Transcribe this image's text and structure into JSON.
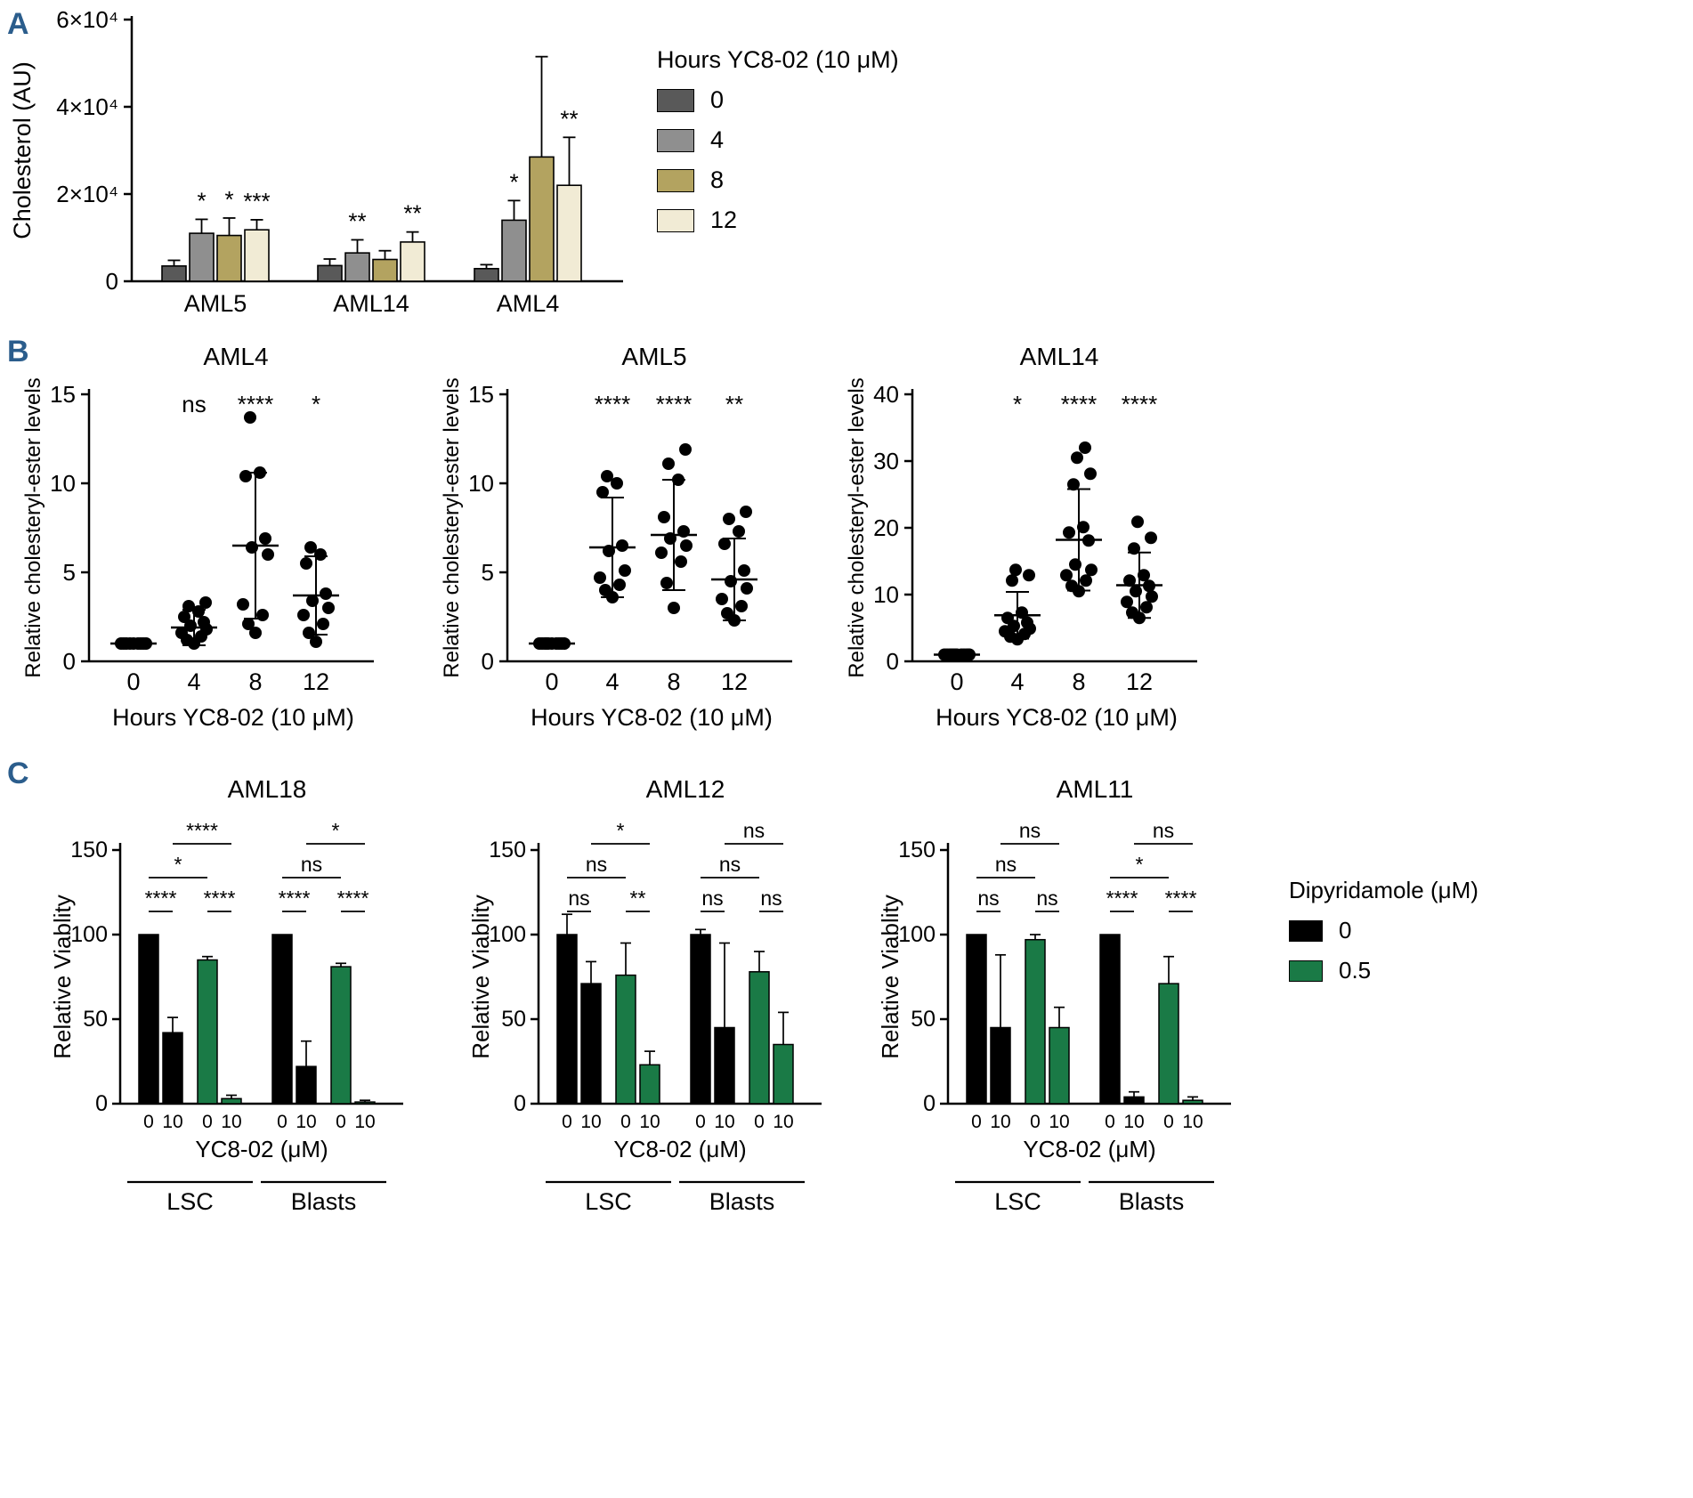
{
  "figure": {
    "panel_labels": {
      "a": "A",
      "b": "B",
      "c": "C"
    },
    "panel_label_color": "#2b5d8c",
    "background": "#ffffff"
  },
  "colors": {
    "black_bar": "#000000",
    "green_bar": "#1a7a46"
  },
  "legend_c": {
    "title": "Dipyridamole (μM)",
    "entries": [
      {
        "label": "0",
        "color": "#000000"
      },
      {
        "label": "0.5",
        "color": "#1a7a46"
      }
    ]
  },
  "chart_data": [
    {
      "id": "panelA",
      "type": "bar",
      "title": "",
      "ylabel": "Cholesterol (AU)",
      "ylim": [
        0,
        60000
      ],
      "yticks": [
        {
          "v": 0,
          "label": "0"
        },
        {
          "v": 20000,
          "label": "2×10⁴"
        },
        {
          "v": 40000,
          "label": "4×10⁴"
        },
        {
          "v": 60000,
          "label": "6×10⁴"
        }
      ],
      "legend": {
        "title": "Hours YC8-02 (10 μM)",
        "entries": [
          {
            "label": "0",
            "color": "#595959"
          },
          {
            "label": "4",
            "color": "#8f8f8f"
          },
          {
            "label": "8",
            "color": "#b3a360"
          },
          {
            "label": "12",
            "color": "#f1ebd5"
          }
        ]
      },
      "groups": [
        {
          "label": "AML5",
          "bars": [
            {
              "hours": "0",
              "value": 3500,
              "err": 1300,
              "sig": ""
            },
            {
              "hours": "4",
              "value": 11000,
              "err": 3200,
              "sig": "*"
            },
            {
              "hours": "8",
              "value": 10500,
              "err": 4000,
              "sig": "*"
            },
            {
              "hours": "12",
              "value": 11800,
              "err": 2300,
              "sig": "***"
            }
          ]
        },
        {
          "label": "AML14",
          "bars": [
            {
              "hours": "0",
              "value": 3600,
              "err": 1500,
              "sig": ""
            },
            {
              "hours": "4",
              "value": 6500,
              "err": 3000,
              "sig": "**"
            },
            {
              "hours": "8",
              "value": 5000,
              "err": 2000,
              "sig": ""
            },
            {
              "hours": "12",
              "value": 9000,
              "err": 2300,
              "sig": "**"
            }
          ]
        },
        {
          "label": "AML4",
          "bars": [
            {
              "hours": "0",
              "value": 2900,
              "err": 900,
              "sig": ""
            },
            {
              "hours": "4",
              "value": 14000,
              "err": 4500,
              "sig": "*"
            },
            {
              "hours": "8",
              "value": 28500,
              "err": 23000,
              "sig": ""
            },
            {
              "hours": "12",
              "value": 22000,
              "err": 11000,
              "sig": "**"
            }
          ]
        }
      ]
    },
    {
      "id": "panelB1",
      "type": "scatter",
      "title": "AML4",
      "ylabel": "Relative cholesteryl-ester levels",
      "xlabel": "Hours YC8-02 (10 μM)",
      "ylim": [
        0,
        15
      ],
      "yticks": [
        0,
        5,
        10,
        15
      ],
      "columns": [
        {
          "x": "0",
          "sig": "",
          "mean": 1.0,
          "sd": 0,
          "points": [
            1,
            1,
            1,
            1,
            1,
            1,
            1,
            1,
            1
          ]
        },
        {
          "x": "4",
          "sig": "ns",
          "mean": 1.9,
          "sd": 1.0,
          "points": [
            1.0,
            1.2,
            1.4,
            1.6,
            1.8,
            2.0,
            2.2,
            2.5,
            2.8,
            3.1,
            3.3
          ]
        },
        {
          "x": "8",
          "sig": "****",
          "mean": 6.5,
          "sd": 4.1,
          "points": [
            1.6,
            2.1,
            2.6,
            3.2,
            6.0,
            6.4,
            6.9,
            10.4,
            10.6,
            13.7
          ]
        },
        {
          "x": "12",
          "sig": "*",
          "mean": 3.7,
          "sd": 2.2,
          "points": [
            1.1,
            1.6,
            2.1,
            2.6,
            3.0,
            3.4,
            3.8,
            5.5,
            6.0,
            6.4
          ]
        }
      ]
    },
    {
      "id": "panelB2",
      "type": "scatter",
      "title": "AML5",
      "ylabel": "Relative cholesteryl-ester levels",
      "xlabel": "Hours YC8-02 (10 μM)",
      "ylim": [
        0,
        15
      ],
      "yticks": [
        0,
        5,
        10,
        15
      ],
      "columns": [
        {
          "x": "0",
          "sig": "",
          "mean": 1.0,
          "sd": 0,
          "points": [
            1,
            1,
            1,
            1,
            1,
            1,
            1,
            1,
            1,
            1
          ]
        },
        {
          "x": "4",
          "sig": "****",
          "mean": 6.4,
          "sd": 2.8,
          "points": [
            3.6,
            4.0,
            4.3,
            4.7,
            5.1,
            6.2,
            6.5,
            9.5,
            10.0,
            10.4
          ]
        },
        {
          "x": "8",
          "sig": "****",
          "mean": 7.1,
          "sd": 3.1,
          "points": [
            3.0,
            4.4,
            5.6,
            6.1,
            6.5,
            6.9,
            7.3,
            8.1,
            10.2,
            11.1,
            11.9
          ]
        },
        {
          "x": "12",
          "sig": "**",
          "mean": 4.6,
          "sd": 2.3,
          "points": [
            2.3,
            2.7,
            3.1,
            3.5,
            4.1,
            4.5,
            5.1,
            6.6,
            7.3,
            8.0,
            8.4
          ]
        }
      ]
    },
    {
      "id": "panelB3",
      "type": "scatter",
      "title": "AML14",
      "ylabel": "Relative cholesteryl-ester levels",
      "xlabel": "Hours YC8-02 (10 μM)",
      "ylim": [
        0,
        40
      ],
      "yticks": [
        0,
        10,
        20,
        30,
        40
      ],
      "columns": [
        {
          "x": "0",
          "sig": "",
          "mean": 1.0,
          "sd": 0,
          "points": [
            1,
            1,
            1,
            1,
            1,
            1,
            1,
            1,
            1,
            1,
            1,
            1
          ]
        },
        {
          "x": "4",
          "sig": "*",
          "mean": 6.9,
          "sd": 3.5,
          "points": [
            3.3,
            3.7,
            4.1,
            4.5,
            4.9,
            5.3,
            5.8,
            6.5,
            7.3,
            12.1,
            12.9,
            13.7
          ]
        },
        {
          "x": "8",
          "sig": "****",
          "mean": 18.2,
          "sd": 7.6,
          "points": [
            10.5,
            11.3,
            12.1,
            12.9,
            13.7,
            14.5,
            18.1,
            19.3,
            20.1,
            26.5,
            28.1,
            30.5,
            32.0
          ]
        },
        {
          "x": "12",
          "sig": "****",
          "mean": 11.4,
          "sd": 4.9,
          "points": [
            6.5,
            7.3,
            8.1,
            8.9,
            9.7,
            10.5,
            11.3,
            12.1,
            12.9,
            16.9,
            18.5,
            20.9
          ]
        }
      ]
    },
    {
      "id": "panelC1",
      "type": "grouped-bar",
      "title": "AML18",
      "ylabel": "Relative Viablity",
      "xlabel": "YC8-02 (μM)",
      "ylim": [
        0,
        150
      ],
      "yticks": [
        0,
        50,
        100,
        150
      ],
      "group_labels": [
        "LSC",
        "Blasts"
      ],
      "bars": [
        {
          "x": "0",
          "color": "black",
          "value": 100,
          "err": 0
        },
        {
          "x": "10",
          "color": "black",
          "value": 42,
          "err": 9
        },
        {
          "x": "0",
          "color": "green",
          "value": 85,
          "err": 2
        },
        {
          "x": "10",
          "color": "green",
          "value": 3,
          "err": 2
        },
        {
          "x": "0",
          "color": "black",
          "value": 100,
          "err": 0
        },
        {
          "x": "10",
          "color": "black",
          "value": 22,
          "err": 15
        },
        {
          "x": "0",
          "color": "green",
          "value": 81,
          "err": 2
        },
        {
          "x": "10",
          "color": "green",
          "value": 1,
          "err": 1
        }
      ],
      "brackets": [
        {
          "from": 0,
          "to": 1,
          "level": 1,
          "label": "****"
        },
        {
          "from": 2,
          "to": 3,
          "level": 1,
          "label": "****"
        },
        {
          "from": 4,
          "to": 5,
          "level": 1,
          "label": "****"
        },
        {
          "from": 6,
          "to": 7,
          "level": 1,
          "label": "****"
        },
        {
          "from": 0,
          "to": 2,
          "level": 2,
          "label": "*"
        },
        {
          "from": 4,
          "to": 6,
          "level": 2,
          "label": "ns"
        },
        {
          "from": 1,
          "to": 3,
          "level": 3,
          "label": "****"
        },
        {
          "from": 5,
          "to": 7,
          "level": 3,
          "label": "*"
        }
      ]
    },
    {
      "id": "panelC2",
      "type": "grouped-bar",
      "title": "AML12",
      "ylabel": "Relative Viablity",
      "xlabel": "YC8-02 (μM)",
      "ylim": [
        0,
        150
      ],
      "yticks": [
        0,
        50,
        100,
        150
      ],
      "group_labels": [
        "LSC",
        "Blasts"
      ],
      "bars": [
        {
          "x": "0",
          "color": "black",
          "value": 100,
          "err": 12
        },
        {
          "x": "10",
          "color": "black",
          "value": 71,
          "err": 13
        },
        {
          "x": "0",
          "color": "green",
          "value": 76,
          "err": 19
        },
        {
          "x": "10",
          "color": "green",
          "value": 23,
          "err": 8
        },
        {
          "x": "0",
          "color": "black",
          "value": 100,
          "err": 3
        },
        {
          "x": "10",
          "color": "black",
          "value": 45,
          "err": 50
        },
        {
          "x": "0",
          "color": "green",
          "value": 78,
          "err": 12
        },
        {
          "x": "10",
          "color": "green",
          "value": 35,
          "err": 19
        }
      ],
      "brackets": [
        {
          "from": 0,
          "to": 1,
          "level": 1,
          "label": "ns"
        },
        {
          "from": 2,
          "to": 3,
          "level": 1,
          "label": "**"
        },
        {
          "from": 4,
          "to": 5,
          "level": 1,
          "label": "ns"
        },
        {
          "from": 6,
          "to": 7,
          "level": 1,
          "label": "ns"
        },
        {
          "from": 0,
          "to": 2,
          "level": 2,
          "label": "ns"
        },
        {
          "from": 4,
          "to": 6,
          "level": 2,
          "label": "ns"
        },
        {
          "from": 1,
          "to": 3,
          "level": 3,
          "label": "*"
        },
        {
          "from": 5,
          "to": 7,
          "level": 3,
          "label": "ns"
        }
      ]
    },
    {
      "id": "panelC3",
      "type": "grouped-bar",
      "title": "AML11",
      "ylabel": "Relative Viablity",
      "xlabel": "YC8-02 (μM)",
      "ylim": [
        0,
        150
      ],
      "yticks": [
        0,
        50,
        100,
        150
      ],
      "group_labels": [
        "LSC",
        "Blasts"
      ],
      "bars": [
        {
          "x": "0",
          "color": "black",
          "value": 100,
          "err": 0
        },
        {
          "x": "10",
          "color": "black",
          "value": 45,
          "err": 43
        },
        {
          "x": "0",
          "color": "green",
          "value": 97,
          "err": 3
        },
        {
          "x": "10",
          "color": "green",
          "value": 45,
          "err": 12
        },
        {
          "x": "0",
          "color": "black",
          "value": 100,
          "err": 0
        },
        {
          "x": "10",
          "color": "black",
          "value": 4,
          "err": 3
        },
        {
          "x": "0",
          "color": "green",
          "value": 71,
          "err": 16
        },
        {
          "x": "10",
          "color": "green",
          "value": 2,
          "err": 2
        }
      ],
      "brackets": [
        {
          "from": 0,
          "to": 1,
          "level": 1,
          "label": "ns"
        },
        {
          "from": 2,
          "to": 3,
          "level": 1,
          "label": "ns"
        },
        {
          "from": 4,
          "to": 5,
          "level": 1,
          "label": "****"
        },
        {
          "from": 6,
          "to": 7,
          "level": 1,
          "label": "****"
        },
        {
          "from": 0,
          "to": 2,
          "level": 2,
          "label": "ns"
        },
        {
          "from": 4,
          "to": 6,
          "level": 2,
          "label": "*"
        },
        {
          "from": 1,
          "to": 3,
          "level": 3,
          "label": "ns"
        },
        {
          "from": 5,
          "to": 7,
          "level": 3,
          "label": "ns"
        }
      ]
    }
  ]
}
